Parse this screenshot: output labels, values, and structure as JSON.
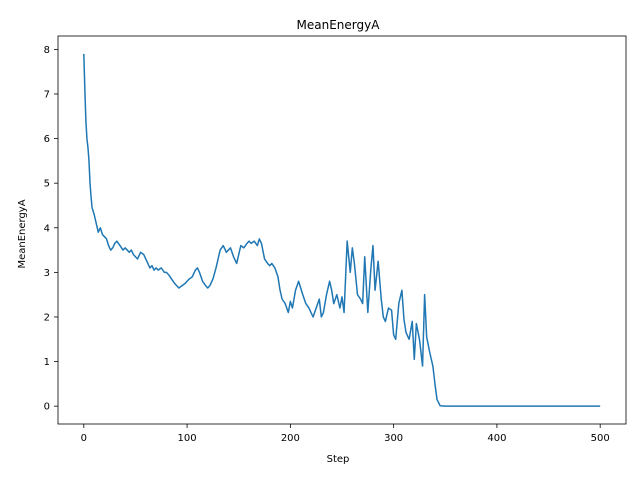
{
  "chart_data": {
    "type": "line",
    "title": "MeanEnergyA",
    "xlabel": "Step",
    "ylabel": "MeanEnergyA",
    "xlim": [
      -25,
      525
    ],
    "ylim": [
      -0.4,
      8.3
    ],
    "xticks": [
      0,
      100,
      200,
      300,
      400,
      500
    ],
    "yticks": [
      0,
      1,
      2,
      3,
      4,
      5,
      6,
      7,
      8
    ],
    "grid": false,
    "line_color": "#1f77b4",
    "series": [
      {
        "x": [
          0,
          1,
          2,
          3,
          4,
          5,
          6,
          7,
          8,
          10,
          12,
          14,
          16,
          18,
          20,
          22,
          24,
          26,
          28,
          30,
          32,
          35,
          38,
          40,
          42,
          44,
          46,
          48,
          50,
          52,
          55,
          58,
          60,
          62,
          64,
          66,
          68,
          70,
          72,
          75,
          78,
          80,
          82,
          85,
          88,
          90,
          92,
          95,
          98,
          100,
          102,
          105,
          108,
          110,
          112,
          115,
          118,
          120,
          122,
          125,
          128,
          130,
          132,
          135,
          138,
          140,
          142,
          145,
          148,
          150,
          152,
          155,
          158,
          160,
          162,
          165,
          168,
          170,
          172,
          175,
          178,
          180,
          182,
          185,
          188,
          190,
          192,
          195,
          198,
          200,
          202,
          205,
          208,
          210,
          212,
          215,
          218,
          220,
          222,
          225,
          228,
          230,
          232,
          235,
          238,
          240,
          242,
          245,
          248,
          250,
          252,
          255,
          258,
          260,
          262,
          265,
          268,
          270,
          272,
          275,
          278,
          280,
          282,
          285,
          288,
          290,
          292,
          295,
          298,
          300,
          302,
          305,
          308,
          310,
          312,
          315,
          318,
          320,
          322,
          325,
          328,
          330,
          332,
          335,
          338,
          340,
          342,
          345,
          350,
          360,
          380,
          400,
          420,
          440,
          460,
          480,
          500
        ],
        "values": [
          7.9,
          7.1,
          6.4,
          6.0,
          5.8,
          5.5,
          5.0,
          4.7,
          4.45,
          4.3,
          4.1,
          3.9,
          4.0,
          3.85,
          3.8,
          3.75,
          3.6,
          3.5,
          3.55,
          3.65,
          3.7,
          3.6,
          3.5,
          3.55,
          3.5,
          3.45,
          3.5,
          3.4,
          3.35,
          3.3,
          3.45,
          3.4,
          3.3,
          3.2,
          3.1,
          3.15,
          3.05,
          3.1,
          3.05,
          3.1,
          3.0,
          3.0,
          2.95,
          2.85,
          2.75,
          2.7,
          2.65,
          2.7,
          2.75,
          2.8,
          2.85,
          2.9,
          3.05,
          3.1,
          3.0,
          2.8,
          2.7,
          2.65,
          2.7,
          2.85,
          3.1,
          3.3,
          3.5,
          3.6,
          3.45,
          3.5,
          3.55,
          3.35,
          3.2,
          3.4,
          3.6,
          3.55,
          3.65,
          3.7,
          3.65,
          3.7,
          3.6,
          3.75,
          3.65,
          3.3,
          3.2,
          3.15,
          3.2,
          3.1,
          2.9,
          2.6,
          2.4,
          2.3,
          2.1,
          2.35,
          2.2,
          2.6,
          2.8,
          2.65,
          2.5,
          2.3,
          2.2,
          2.1,
          2.0,
          2.2,
          2.4,
          2.0,
          2.1,
          2.5,
          2.8,
          2.6,
          2.3,
          2.5,
          2.2,
          2.45,
          2.1,
          3.7,
          3.0,
          3.55,
          3.2,
          2.5,
          2.4,
          2.3,
          3.35,
          2.1,
          3.1,
          3.6,
          2.6,
          3.25,
          2.4,
          2.0,
          1.9,
          2.2,
          2.15,
          1.6,
          1.5,
          2.3,
          2.6,
          1.95,
          1.65,
          1.5,
          1.9,
          1.05,
          1.85,
          1.5,
          0.9,
          2.5,
          1.55,
          1.2,
          0.9,
          0.5,
          0.15,
          0.01,
          0.0,
          0.0,
          0.0,
          0.0,
          0.0,
          0.0,
          0.0,
          0.0,
          0.0
        ]
      }
    ]
  }
}
